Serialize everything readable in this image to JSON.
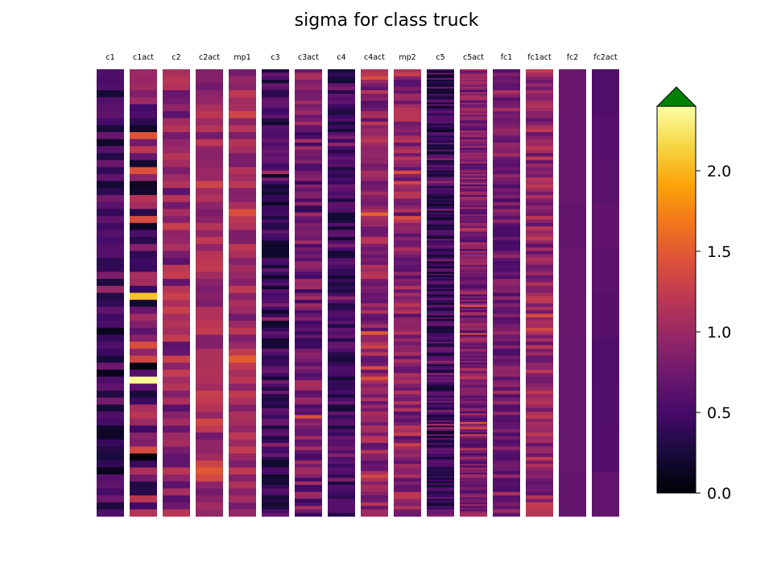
{
  "chart_data": {
    "type": "heatmap",
    "title": "sigma for class truck",
    "columns": [
      {
        "name": "c1",
        "rows": 64
      },
      {
        "name": "c1act",
        "rows": 64
      },
      {
        "name": "c2",
        "rows": 64
      },
      {
        "name": "c2act",
        "rows": 64
      },
      {
        "name": "mp1",
        "rows": 64
      },
      {
        "name": "c3",
        "rows": 128
      },
      {
        "name": "c3act",
        "rows": 128
      },
      {
        "name": "c4",
        "rows": 128
      },
      {
        "name": "c4act",
        "rows": 128
      },
      {
        "name": "mp2",
        "rows": 128
      },
      {
        "name": "c5",
        "rows": 256
      },
      {
        "name": "c5act",
        "rows": 256
      },
      {
        "name": "fc1",
        "rows": 128
      },
      {
        "name": "fc1act",
        "rows": 128
      },
      {
        "name": "fc2",
        "rows": 10
      },
      {
        "name": "fc2act",
        "rows": 10
      }
    ],
    "colormap": "inferno",
    "colorbar": {
      "min": 0.0,
      "max": 2.4,
      "ticks": [
        0.0,
        0.5,
        1.0,
        1.5,
        2.0
      ],
      "tick_labels": [
        "0.0",
        "0.5",
        "1.0",
        "1.5",
        "2.0"
      ],
      "extend": "max",
      "over_color": "#008000"
    },
    "column_stats": {
      "c1": {
        "mean": 0.45,
        "spread": 0.35
      },
      "c1act": {
        "mean": 0.75,
        "spread": 0.75
      },
      "c2": {
        "mean": 0.95,
        "spread": 0.35
      },
      "c2act": {
        "mean": 1.0,
        "spread": 0.25
      },
      "mp1": {
        "mean": 1.0,
        "spread": 0.25
      },
      "c3": {
        "mean": 0.45,
        "spread": 0.3
      },
      "c3act": {
        "mean": 0.75,
        "spread": 0.35
      },
      "c4": {
        "mean": 0.45,
        "spread": 0.25
      },
      "c4act": {
        "mean": 0.9,
        "spread": 0.3
      },
      "mp2": {
        "mean": 0.9,
        "spread": 0.3
      },
      "c5": {
        "mean": 0.45,
        "spread": 0.3
      },
      "c5act": {
        "mean": 0.8,
        "spread": 0.3
      },
      "fc1": {
        "mean": 0.75,
        "spread": 0.25
      },
      "fc1act": {
        "mean": 0.95,
        "spread": 0.3
      },
      "fc2": {
        "mean": 0.7,
        "spread": 0.03
      },
      "fc2act": {
        "mean": 0.62,
        "spread": 0.07
      }
    }
  }
}
